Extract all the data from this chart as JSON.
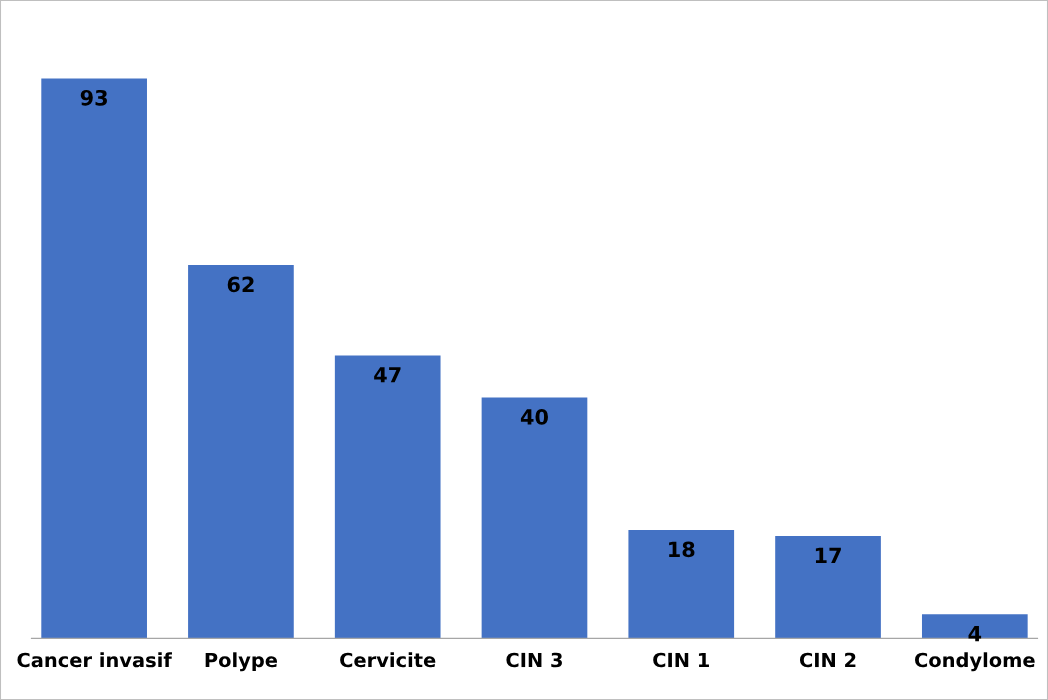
{
  "chart_data": {
    "type": "bar",
    "categories": [
      "Cancer invasif",
      "Polype",
      "Cervicite",
      "CIN 3",
      "CIN 1",
      "CIN 2",
      "Condylome"
    ],
    "values": [
      93,
      62,
      47,
      40,
      18,
      17,
      4
    ],
    "color": "#4472c4",
    "data_labels": true,
    "grid": false,
    "legend": false
  }
}
